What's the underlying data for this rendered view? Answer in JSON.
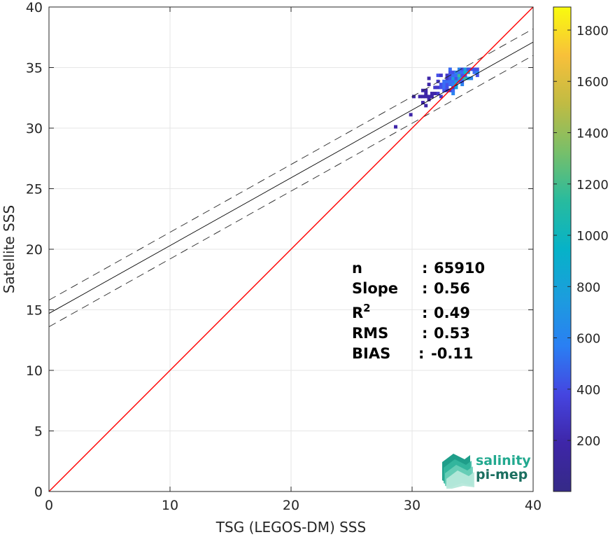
{
  "chart_data": {
    "type": "heatmap",
    "xlabel": "TSG (LEGOS-DM) SSS",
    "ylabel": "Satellite SSS",
    "xlim": [
      0,
      40
    ],
    "ylim": [
      0,
      40
    ],
    "xticks": [
      0,
      10,
      20,
      30,
      40
    ],
    "yticks": [
      0,
      5,
      10,
      15,
      20,
      25,
      30,
      35,
      40
    ],
    "grid": true,
    "colorbar": {
      "colormap": "parula",
      "range": [
        1,
        1890
      ],
      "ticks": [
        200,
        400,
        600,
        800,
        1000,
        1200,
        1400,
        1600,
        1800
      ]
    },
    "identity_line": {
      "color": "#ff0000",
      "x": [
        0,
        40
      ],
      "y": [
        0,
        40
      ]
    },
    "fit_line": {
      "color": "#000000",
      "x": [
        0,
        40
      ],
      "y": [
        14.7,
        37.1
      ]
    },
    "fit_bounds": [
      {
        "style": "dashed",
        "x": [
          0,
          40
        ],
        "y": [
          15.8,
          38.2
        ]
      },
      {
        "style": "dashed",
        "x": [
          0,
          40
        ],
        "y": [
          13.6,
          36.0
        ]
      }
    ],
    "density_cluster": {
      "x_range": [
        28.5,
        35.5
      ],
      "y_range": [
        30.0,
        35.0
      ],
      "peak": [
        34.0,
        34.0
      ]
    }
  },
  "stats": [
    {
      "label": "n",
      "sep": ":",
      "value": "65910"
    },
    {
      "label": "Slope",
      "sep": ":",
      "value": "0.56"
    },
    {
      "label": "R",
      "sup": "2",
      "sep": ":",
      "value": "0.49"
    },
    {
      "label": "RMS",
      "sep": ":",
      "value": "0.53"
    },
    {
      "label": "BIAS",
      "sep": ":",
      "value": "-0.11"
    }
  ],
  "logo": {
    "line1": "salinity",
    "line2": "pi-mep"
  }
}
